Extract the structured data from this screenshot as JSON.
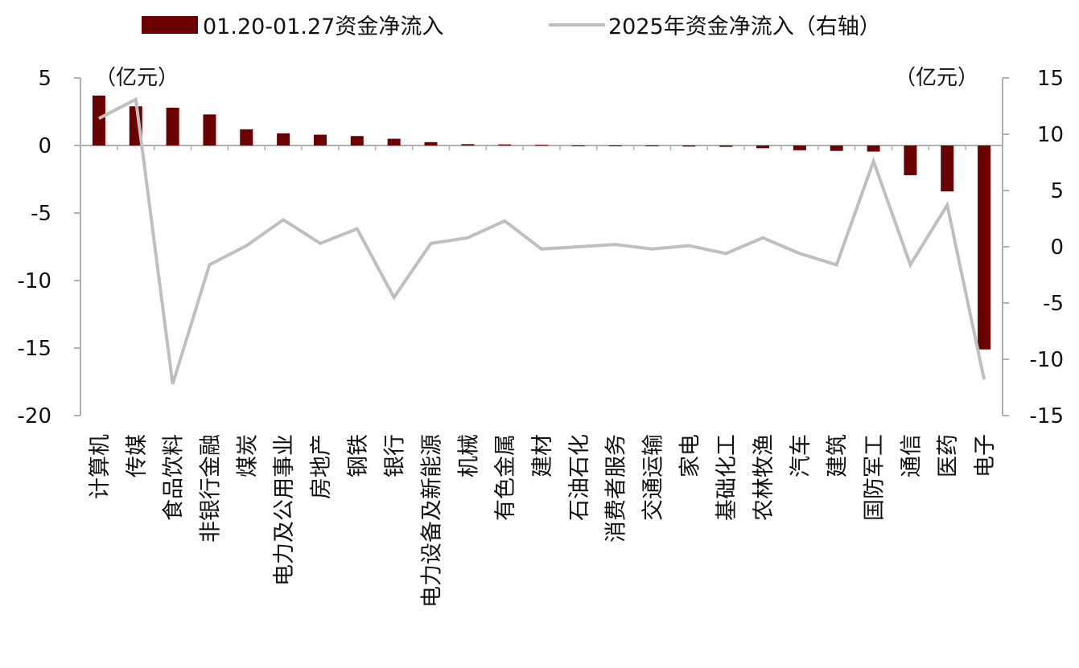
{
  "chart_data": {
    "type": "bar+line",
    "title": "",
    "categories": [
      "计算机",
      "传媒",
      "食品饮料",
      "非银行金融",
      "煤炭",
      "电力及公用事业",
      "房地产",
      "钢铁",
      "银行",
      "电力设备及新能源",
      "机械",
      "有色金属",
      "建材",
      "石油石化",
      "消费者服务",
      "交通运输",
      "家电",
      "基础化工",
      "农林牧渔",
      "汽车",
      "建筑",
      "国防军工",
      "通信",
      "医药",
      "电子"
    ],
    "series": [
      {
        "name": "01.20-01.27资金净流入",
        "type": "bar",
        "axis": "left",
        "color": "#6b0000",
        "values": [
          3.7,
          2.9,
          2.8,
          2.3,
          1.2,
          0.9,
          0.8,
          0.7,
          0.5,
          0.25,
          0.1,
          0.08,
          0.05,
          0.0,
          0.0,
          -0.05,
          -0.08,
          -0.1,
          -0.2,
          -0.35,
          -0.4,
          -0.45,
          -2.2,
          -3.4,
          -15.1
        ]
      },
      {
        "name": "2025年资金净流入（右轴）",
        "type": "line",
        "axis": "right",
        "color": "#bfbfbf",
        "values": [
          11.4,
          13.1,
          -12.2,
          -1.6,
          0.1,
          2.4,
          0.3,
          1.6,
          -4.5,
          0.3,
          0.8,
          2.3,
          -0.2,
          0.0,
          0.2,
          -0.2,
          0.1,
          -0.6,
          0.8,
          -0.6,
          -1.6,
          7.6,
          -1.6,
          3.7,
          -11.8
        ]
      }
    ],
    "left_axis": {
      "unit": "（亿元）",
      "min": -20,
      "max": 5,
      "ticks": [
        5,
        0,
        -5,
        -10,
        -15,
        -20
      ]
    },
    "right_axis": {
      "unit": "（亿元）",
      "min": -15,
      "max": 15,
      "ticks": [
        15,
        10,
        5,
        0,
        -5,
        -10,
        -15
      ]
    },
    "legend_position": "top",
    "grid": false
  }
}
